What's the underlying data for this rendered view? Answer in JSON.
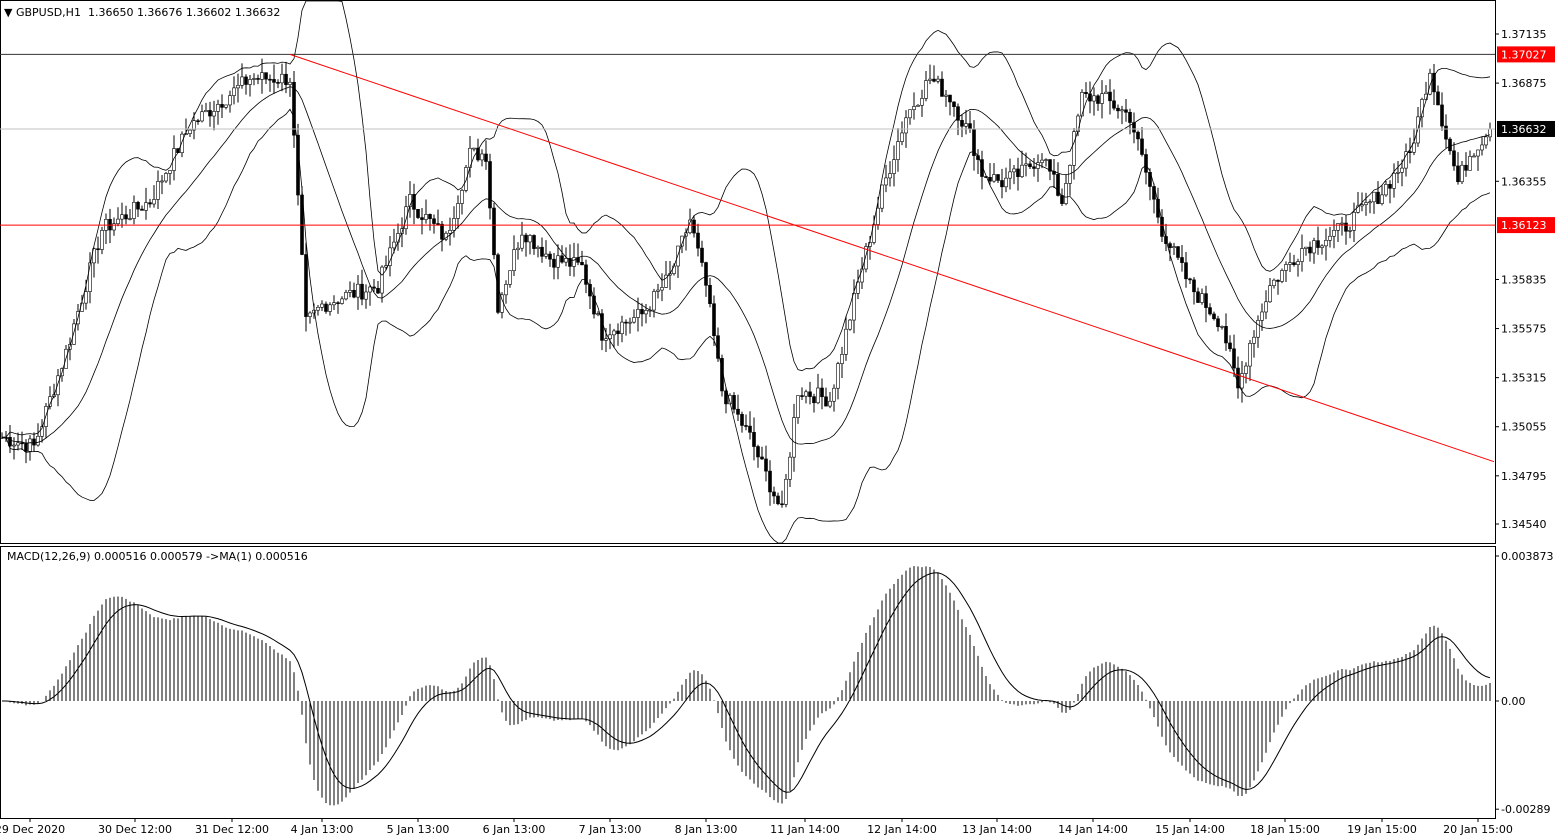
{
  "header": {
    "symbol": "GBPUSD,H1",
    "ohlc": "1.36650 1.36676 1.36602 1.36632"
  },
  "macd_header": "MACD(12,26,9) 0.000516 0.000579  ->MA(1) 0.000516",
  "colors": {
    "background": "#ffffff",
    "candle": "#000000",
    "support_line": "#ff0000",
    "trendline": "#ff0000",
    "bid_line": "#c0c0c0",
    "label_red": "#ff0000",
    "label_black": "#000000"
  },
  "chart_data": [
    {
      "type": "candlestick",
      "title": "GBPUSD,H1",
      "ylim": [
        1.3442,
        1.373
      ],
      "y_ticks": [
        "1.37135",
        "1.36875",
        "1.36355",
        "1.35835",
        "1.35575",
        "1.35315",
        "1.35055",
        "1.34795",
        "1.34540"
      ],
      "x_ticks": [
        "29 Dec 2020",
        "30 Dec 12:00",
        "31 Dec 12:00",
        "4 Jan 13:00",
        "5 Jan 13:00",
        "6 Jan 13:00",
        "7 Jan 13:00",
        "8 Jan 13:00",
        "11 Jan 14:00",
        "12 Jan 14:00",
        "13 Jan 14:00",
        "14 Jan 14:00",
        "15 Jan 14:00",
        "18 Jan 15:00",
        "19 Jan 15:00",
        "20 Jan 15:00"
      ],
      "bars_total": 373,
      "price_path_bar_close": [
        [
          0,
          1.35
        ],
        [
          8,
          1.3495
        ],
        [
          16,
          1.3545
        ],
        [
          25,
          1.361
        ],
        [
          37,
          1.3625
        ],
        [
          47,
          1.3665
        ],
        [
          62,
          1.369
        ],
        [
          72,
          1.369
        ],
        [
          76,
          1.356
        ],
        [
          80,
          1.357
        ],
        [
          86,
          1.3575
        ],
        [
          94,
          1.358
        ],
        [
          102,
          1.3625
        ],
        [
          111,
          1.3605
        ],
        [
          117,
          1.365
        ],
        [
          121,
          1.365
        ],
        [
          124,
          1.357
        ],
        [
          130,
          1.361
        ],
        [
          137,
          1.3595
        ],
        [
          145,
          1.359
        ],
        [
          150,
          1.3555
        ],
        [
          160,
          1.3565
        ],
        [
          167,
          1.3585
        ],
        [
          172,
          1.3615
        ],
        [
          176,
          1.358
        ],
        [
          180,
          1.3525
        ],
        [
          187,
          1.35
        ],
        [
          195,
          1.346
        ],
        [
          199,
          1.3525
        ],
        [
          207,
          1.352
        ],
        [
          215,
          1.359
        ],
        [
          220,
          1.363
        ],
        [
          226,
          1.367
        ],
        [
          232,
          1.369
        ],
        [
          237,
          1.368
        ],
        [
          242,
          1.366
        ],
        [
          245,
          1.364
        ],
        [
          250,
          1.3635
        ],
        [
          255,
          1.364
        ],
        [
          260,
          1.365
        ],
        [
          265,
          1.3625
        ],
        [
          270,
          1.368
        ],
        [
          275,
          1.368
        ],
        [
          282,
          1.367
        ],
        [
          290,
          1.361
        ],
        [
          297,
          1.358
        ],
        [
          305,
          1.356
        ],
        [
          309,
          1.3525
        ],
        [
          312,
          1.355
        ],
        [
          317,
          1.358
        ],
        [
          325,
          1.36
        ],
        [
          335,
          1.361
        ],
        [
          345,
          1.363
        ],
        [
          352,
          1.365
        ],
        [
          357,
          1.3695
        ],
        [
          361,
          1.366
        ],
        [
          364,
          1.3635
        ],
        [
          367,
          1.365
        ],
        [
          372,
          1.36632
        ]
      ],
      "indicators": [
        "Bollinger Bands(20,2)"
      ],
      "horizontal_lines": [
        {
          "price": "1.37027",
          "label": "1.37027",
          "style": "black"
        },
        {
          "price": "1.36123",
          "label": "1.36123",
          "style": "red"
        },
        {
          "price": "1.36632",
          "label": "1.36632",
          "style": "bid"
        }
      ],
      "trendline": {
        "from": [
          72,
          1.37027
        ],
        "to": [
          373,
          1.3487
        ]
      }
    },
    {
      "type": "bar",
      "title": "MACD(12,26,9)",
      "ylim": [
        -0.00289,
        0.003873
      ],
      "y_ticks": [
        "0.003873",
        "0.00",
        "-0.00289"
      ],
      "series": [
        {
          "name": "MACD",
          "value": "0.000516"
        },
        {
          "name": "Signal",
          "value": "0.000579"
        }
      ]
    }
  ]
}
